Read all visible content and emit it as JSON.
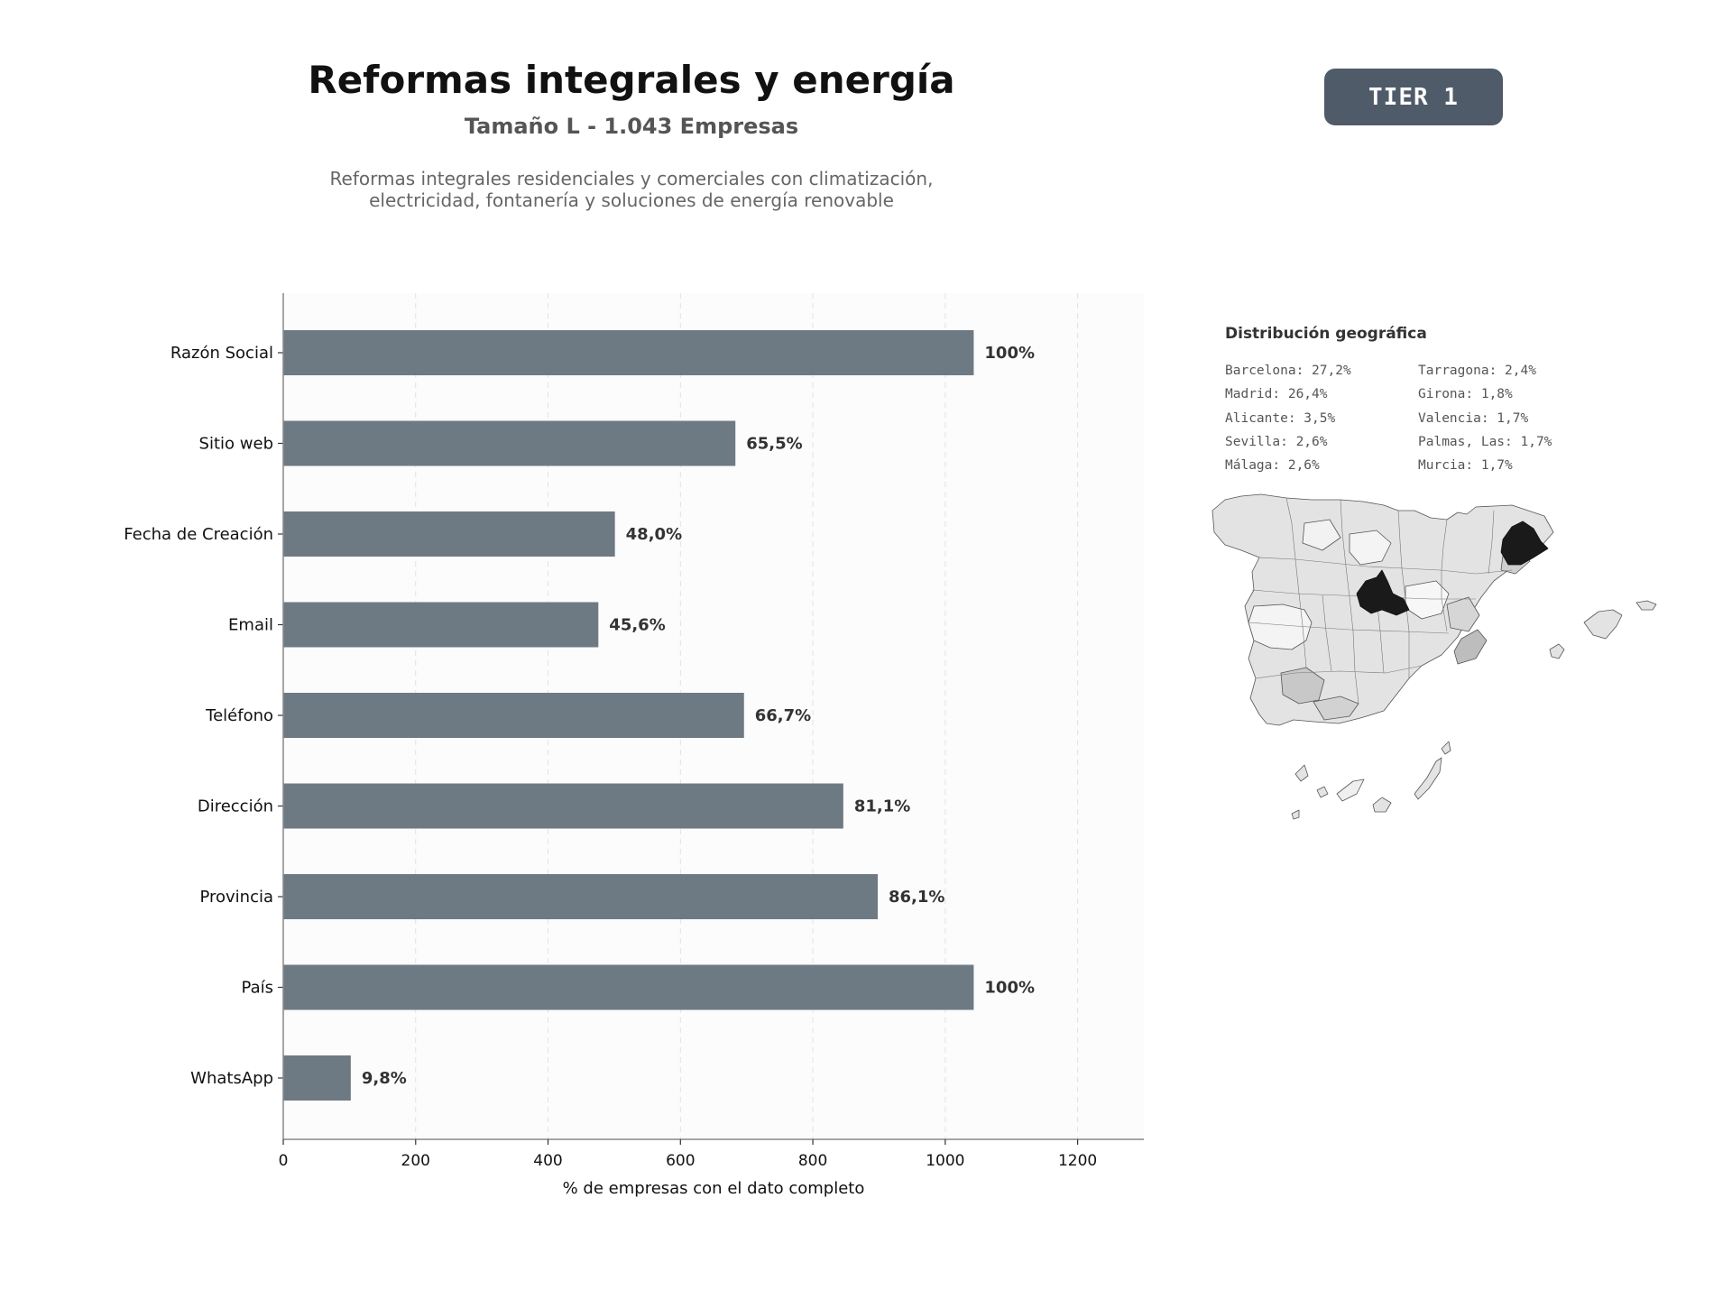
{
  "header": {
    "title": "Reformas integrales y energía",
    "subtitle": "Tamaño L - 1.043 Empresas",
    "description_line1": "Reformas integrales residenciales y comerciales con climatización,",
    "description_line2": "electricidad, fontanería y soluciones de energía renovable",
    "badge": "TIER 1"
  },
  "chart_data": {
    "type": "bar",
    "orientation": "horizontal",
    "categories": [
      "Razón Social",
      "Sitio web",
      "Fecha de Creación",
      "Email",
      "Teléfono",
      "Dirección",
      "Provincia",
      "País",
      "WhatsApp"
    ],
    "values": [
      1043,
      683,
      501,
      476,
      696,
      846,
      898,
      1043,
      102
    ],
    "data_labels": [
      "100%",
      "65,5%",
      "48,0%",
      "45,6%",
      "66,7%",
      "81,1%",
      "86,1%",
      "100%",
      "9,8%"
    ],
    "xlabel": "% de empresas con el dato completo",
    "xlim": [
      0,
      1300
    ],
    "xticks": [
      0,
      200,
      400,
      600,
      800,
      1000,
      1200
    ],
    "grid": true,
    "bar_color": "#6e7a83"
  },
  "geo": {
    "title": "Distribución geográfica",
    "left_column": [
      "Barcelona: 27,2%",
      "Madrid: 26,4%",
      "Alicante: 3,5%",
      "Sevilla: 2,6%",
      "Málaga: 2,6%"
    ],
    "right_column": [
      "Tarragona: 2,4%",
      "Girona: 1,8%",
      "Valencia: 1,7%",
      "Palmas, Las: 1,7%",
      "Murcia: 1,7%"
    ]
  }
}
